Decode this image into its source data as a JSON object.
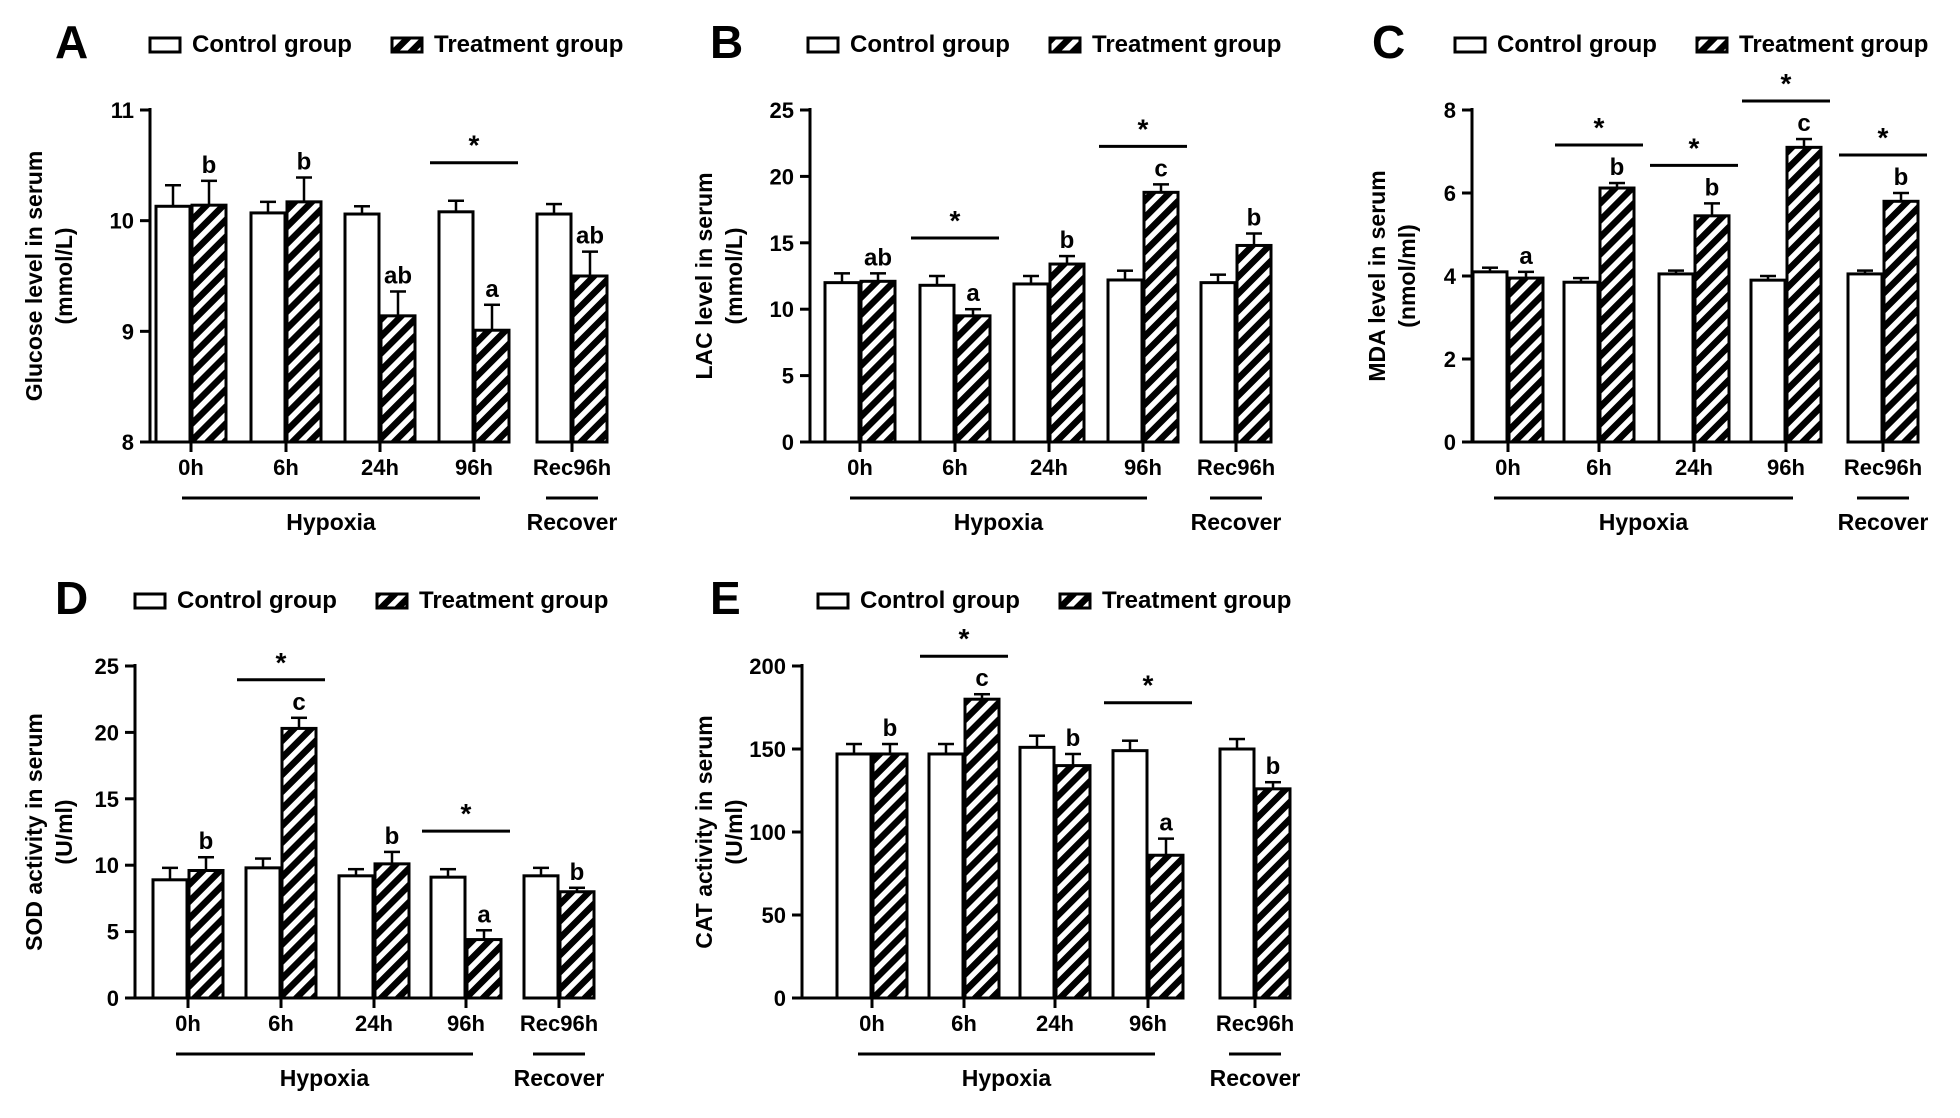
{
  "legend": {
    "control": "Control group",
    "treatment": "Treatment group"
  },
  "group_labels": {
    "hypoxia": "Hypoxia",
    "recover": "Recover"
  },
  "colors": {
    "bar_stroke": "#000000",
    "bar_fill": "#ffffff",
    "hatch": "#000000",
    "text": "#000000"
  },
  "chart_data": [
    {
      "panel": "A",
      "type": "bar",
      "categories": [
        "0h",
        "6h",
        "24h",
        "96h",
        "Rec96h"
      ],
      "ylabel_lines": [
        "Glucose level in serum",
        "(mmol/L)"
      ],
      "ylim": [
        8,
        11
      ],
      "yticks": [
        8,
        9,
        10,
        11
      ],
      "series": [
        {
          "name": "Control group",
          "values": [
            10.13,
            10.07,
            10.06,
            10.08,
            10.06
          ],
          "errors": [
            0.19,
            0.1,
            0.07,
            0.1,
            0.09
          ],
          "labels": [
            "",
            "",
            "",
            "",
            ""
          ]
        },
        {
          "name": "Treatment group",
          "values": [
            10.14,
            10.17,
            9.14,
            9.01,
            9.5
          ],
          "errors": [
            0.22,
            0.22,
            0.22,
            0.23,
            0.22
          ],
          "labels": [
            "b",
            "b",
            "ab",
            "a",
            "ab"
          ]
        }
      ],
      "significance": [
        false,
        false,
        false,
        true,
        false
      ]
    },
    {
      "panel": "B",
      "type": "bar",
      "categories": [
        "0h",
        "6h",
        "24h",
        "96h",
        "Rec96h"
      ],
      "ylabel_lines": [
        "LAC level in serum",
        "(mmol/L)"
      ],
      "ylim": [
        0,
        25
      ],
      "yticks": [
        0,
        5,
        10,
        15,
        20,
        25
      ],
      "series": [
        {
          "name": "Control group",
          "values": [
            12.0,
            11.8,
            11.9,
            12.2,
            12.0
          ],
          "errors": [
            0.7,
            0.7,
            0.6,
            0.7,
            0.6
          ],
          "labels": [
            "",
            "",
            "",
            "",
            ""
          ]
        },
        {
          "name": "Treatment group",
          "values": [
            12.1,
            9.5,
            13.4,
            18.8,
            14.8
          ],
          "errors": [
            0.6,
            0.5,
            0.6,
            0.6,
            0.9
          ],
          "labels": [
            "ab",
            "a",
            "b",
            "c",
            "b"
          ]
        }
      ],
      "significance": [
        false,
        true,
        false,
        true,
        false
      ]
    },
    {
      "panel": "C",
      "type": "bar",
      "categories": [
        "0h",
        "6h",
        "24h",
        "96h",
        "Rec96h"
      ],
      "ylabel_lines": [
        "MDA level in serum",
        "(nmol/ml)"
      ],
      "ylim": [
        0,
        8
      ],
      "yticks": [
        0,
        2,
        4,
        6,
        8
      ],
      "series": [
        {
          "name": "Control group",
          "values": [
            4.1,
            3.85,
            4.05,
            3.9,
            4.05
          ],
          "errors": [
            0.1,
            0.1,
            0.08,
            0.1,
            0.08
          ],
          "labels": [
            "",
            "",
            "",
            "",
            ""
          ]
        },
        {
          "name": "Treatment group",
          "values": [
            3.95,
            6.12,
            5.45,
            7.1,
            5.8
          ],
          "errors": [
            0.15,
            0.12,
            0.3,
            0.2,
            0.2
          ],
          "labels": [
            "a",
            "b",
            "b",
            "c",
            "b"
          ]
        }
      ],
      "significance": [
        false,
        true,
        true,
        true,
        true
      ]
    },
    {
      "panel": "D",
      "type": "bar",
      "categories": [
        "0h",
        "6h",
        "24h",
        "96h",
        "Rec96h"
      ],
      "ylabel_lines": [
        "SOD activity in serum",
        "(U/ml)"
      ],
      "ylim": [
        0,
        25
      ],
      "yticks": [
        0,
        5,
        10,
        15,
        20,
        25
      ],
      "series": [
        {
          "name": "Control group",
          "values": [
            8.9,
            9.8,
            9.2,
            9.1,
            9.2
          ],
          "errors": [
            0.9,
            0.7,
            0.5,
            0.6,
            0.6
          ],
          "labels": [
            "",
            "",
            "",
            "",
            ""
          ]
        },
        {
          "name": "Treatment group",
          "values": [
            9.6,
            20.3,
            10.1,
            4.4,
            8.0
          ],
          "errors": [
            1.0,
            0.8,
            0.9,
            0.7,
            0.3
          ],
          "labels": [
            "b",
            "c",
            "b",
            "a",
            "b"
          ]
        }
      ],
      "significance": [
        false,
        true,
        false,
        true,
        false
      ]
    },
    {
      "panel": "E",
      "type": "bar",
      "categories": [
        "0h",
        "6h",
        "24h",
        "96h",
        "Rec96h"
      ],
      "ylabel_lines": [
        "CAT activity in serum",
        "(U/ml)"
      ],
      "ylim": [
        0,
        200
      ],
      "yticks": [
        0,
        50,
        100,
        150,
        200
      ],
      "series": [
        {
          "name": "Control group",
          "values": [
            147,
            147,
            151,
            149,
            150
          ],
          "errors": [
            6,
            6,
            7,
            6,
            6
          ],
          "labels": [
            "",
            "",
            "",
            "",
            ""
          ]
        },
        {
          "name": "Treatment group",
          "values": [
            147,
            180,
            140,
            86,
            126
          ],
          "errors": [
            6,
            3,
            7,
            10,
            4
          ],
          "labels": [
            "b",
            "c",
            "b",
            "a",
            "b"
          ]
        }
      ],
      "significance": [
        false,
        true,
        false,
        true,
        false
      ]
    }
  ],
  "significance_marker": "*"
}
